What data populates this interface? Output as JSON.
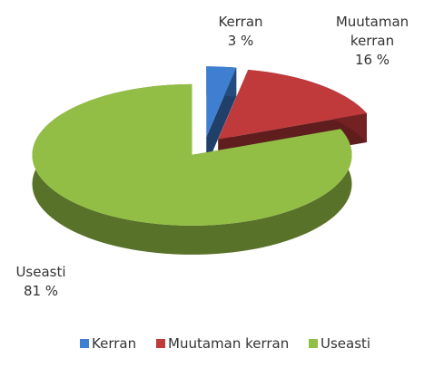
{
  "chart_data": {
    "type": "pie",
    "categories": [
      "Kerran",
      "Muutaman kerran",
      "Useasti"
    ],
    "values": [
      3,
      16,
      81
    ],
    "value_labels": [
      "3 %",
      "16 %",
      "81 %"
    ],
    "colors": [
      "#3f7fd1",
      "#c0393b",
      "#93be45"
    ],
    "legend": "bottom"
  }
}
